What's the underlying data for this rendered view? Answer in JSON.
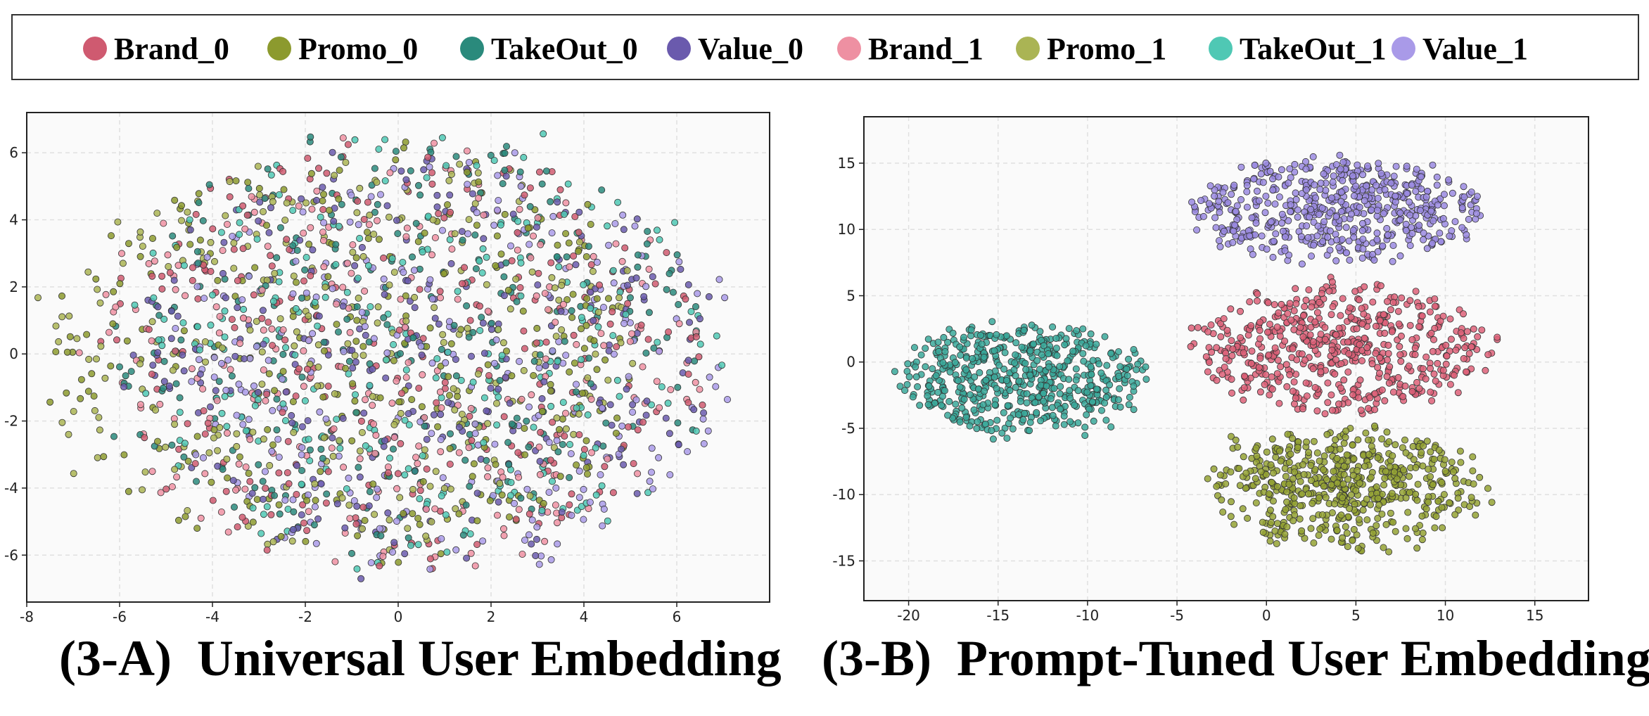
{
  "legend": [
    {
      "label": "Brand_0",
      "color": "#cf5a70"
    },
    {
      "label": "Promo_0",
      "color": "#8c9a2e"
    },
    {
      "label": "TakeOut_0",
      "color": "#2a8a7c"
    },
    {
      "label": "Value_0",
      "color": "#6a5aad"
    },
    {
      "label": "Brand_1",
      "color": "#ee90a2"
    },
    {
      "label": "Promo_1",
      "color": "#aab454"
    },
    {
      "label": "TakeOut_1",
      "color": "#4fc8b4"
    },
    {
      "label": "Value_1",
      "color": "#a99ae8"
    }
  ],
  "captions": {
    "left": "(3-A)  Universal User Embedding",
    "right": "(3-B)  Prompt-Tuned User Embedding"
  },
  "chart_data": [
    {
      "type": "scatter",
      "title": "",
      "xlabel": "",
      "ylabel": "",
      "xlim": [
        -8,
        8
      ],
      "ylim": [
        -7.4,
        7.2
      ],
      "xticks": [
        -8,
        -6,
        -4,
        -2,
        0,
        2,
        4,
        6
      ],
      "yticks": [
        -6,
        -4,
        -2,
        0,
        2,
        4,
        6
      ],
      "grid": true,
      "series": [
        {
          "name": "Brand_0",
          "color": "#cf5a70",
          "cluster": {
            "center": [
              0.2,
              0
            ],
            "spread": [
              3.3,
              3.1
            ]
          }
        },
        {
          "name": "Promo_0",
          "color": "#8c9a2e",
          "cluster": {
            "center": [
              -1.0,
              0
            ],
            "spread": [
              3.3,
              3.0
            ]
          }
        },
        {
          "name": "TakeOut_0",
          "color": "#2a8a7c",
          "cluster": {
            "center": [
              0.3,
              0.4
            ],
            "spread": [
              3.3,
              3.1
            ]
          }
        },
        {
          "name": "Value_0",
          "color": "#6a5aad",
          "cluster": {
            "center": [
              0.6,
              -0.2
            ],
            "spread": [
              3.2,
              3.0
            ]
          }
        },
        {
          "name": "Brand_1",
          "color": "#ee90a2",
          "cluster": {
            "center": [
              0.0,
              0
            ],
            "spread": [
              3.4,
              3.1
            ]
          }
        },
        {
          "name": "Promo_1",
          "color": "#aab454",
          "cluster": {
            "center": [
              -1.2,
              0.2
            ],
            "spread": [
              3.3,
              3.0
            ]
          }
        },
        {
          "name": "TakeOut_1",
          "color": "#4fc8b4",
          "cluster": {
            "center": [
              0.4,
              0.2
            ],
            "spread": [
              3.3,
              3.1
            ]
          }
        },
        {
          "name": "Value_1",
          "color": "#a99ae8",
          "cluster": {
            "center": [
              1.0,
              -0.3
            ],
            "spread": [
              3.2,
              3.0
            ]
          }
        }
      ]
    },
    {
      "type": "scatter",
      "title": "",
      "xlabel": "",
      "ylabel": "",
      "xlim": [
        -22.5,
        18
      ],
      "ylim": [
        -18,
        18.5
      ],
      "xticks": [
        -20,
        -15,
        -10,
        -5,
        0,
        5,
        10,
        15
      ],
      "yticks": [
        -15,
        -10,
        -5,
        0,
        5,
        10,
        15
      ],
      "grid": true,
      "series": [
        {
          "name": "TakeOut",
          "color": "#3aa89a",
          "cluster": {
            "center": [
              -13.5,
              -1.2
            ],
            "spread": [
              6.8,
              4.2
            ]
          }
        },
        {
          "name": "Value",
          "color": "#9a8ae0",
          "cluster": {
            "center": [
              4.0,
              11.5
            ],
            "spread": [
              8.0,
              3.8
            ]
          }
        },
        {
          "name": "Brand",
          "color": "#dd6078",
          "cluster": {
            "center": [
              4.0,
              1.0
            ],
            "spread": [
              8.5,
              4.5
            ]
          }
        },
        {
          "name": "Promo",
          "color": "#94a234",
          "cluster": {
            "center": [
              4.5,
              -9.5
            ],
            "spread": [
              7.5,
              4.5
            ]
          }
        }
      ]
    }
  ]
}
